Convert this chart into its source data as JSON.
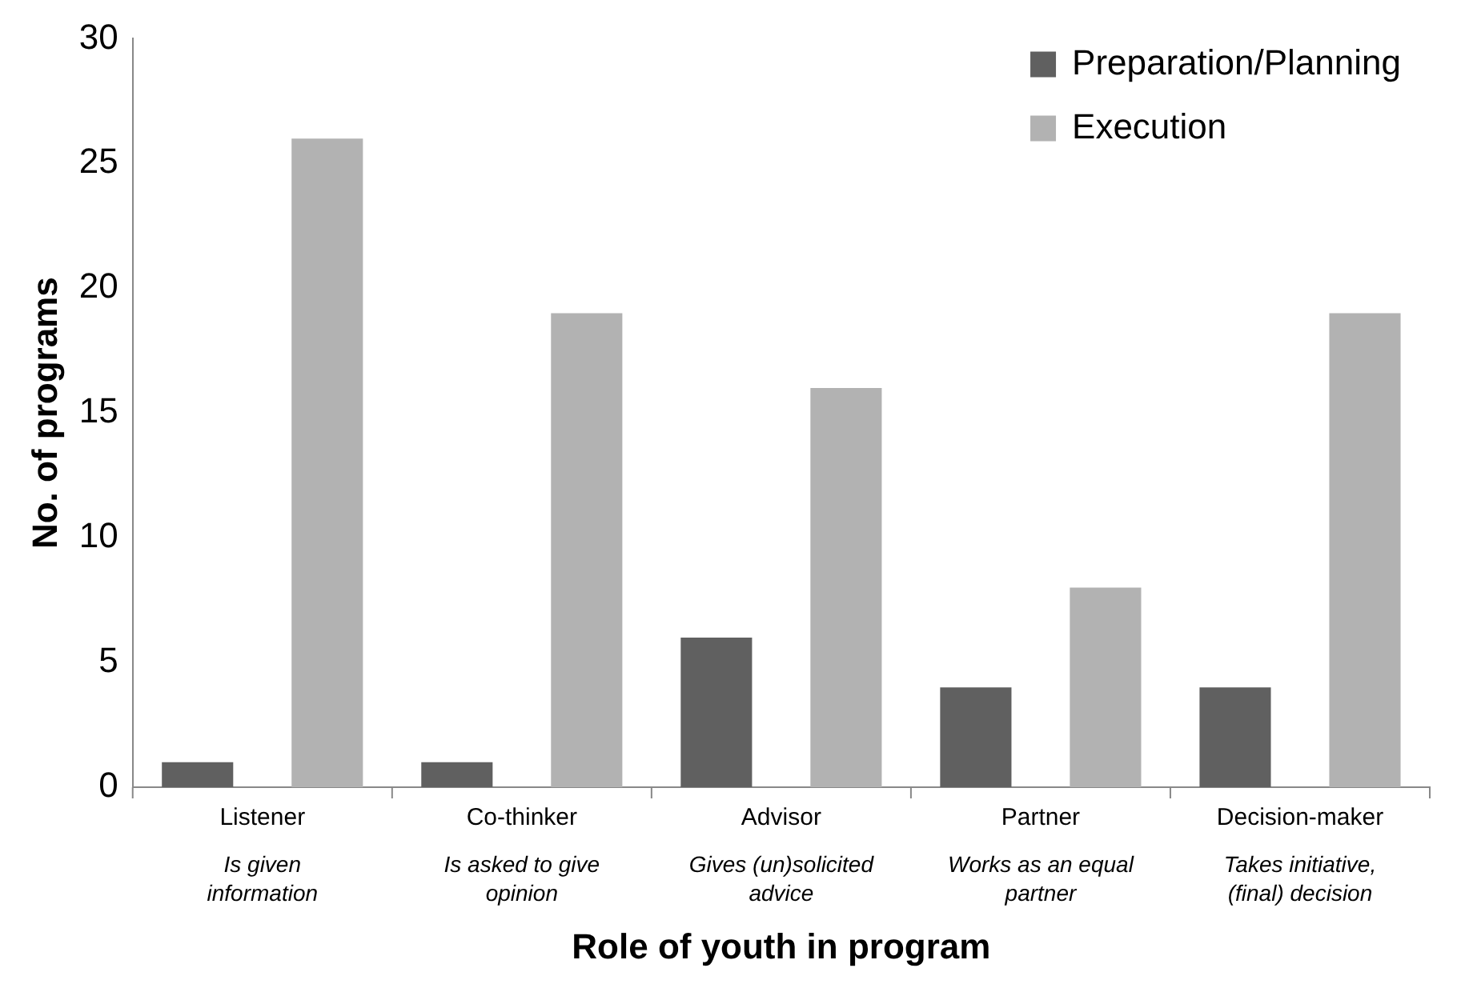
{
  "chart_data": {
    "type": "bar",
    "xlabel": "Role of youth in program",
    "ylabel": "No. of programs",
    "categories": [
      "Listener\nIs given\ninformation",
      "Co-thinker\nIs asked to give\nopinion",
      "Advisor\nGives (un)solicited\nadvice",
      "Partner\nWorks as an equal\npartner",
      "Decision-maker\nTakes initiative,\n(final) decision"
    ],
    "series": [
      {
        "name": "Preparation/Planning",
        "color": "#606060",
        "values": [
          1,
          1,
          6,
          4,
          4
        ]
      },
      {
        "name": "Execution",
        "color": "#b2b2b2",
        "values": [
          26,
          19,
          16,
          8,
          19
        ]
      }
    ],
    "ylim": [
      0,
      30
    ],
    "yticks": [
      0,
      5,
      10,
      15,
      20,
      25,
      30
    ],
    "grid": false,
    "legend": "top right"
  }
}
